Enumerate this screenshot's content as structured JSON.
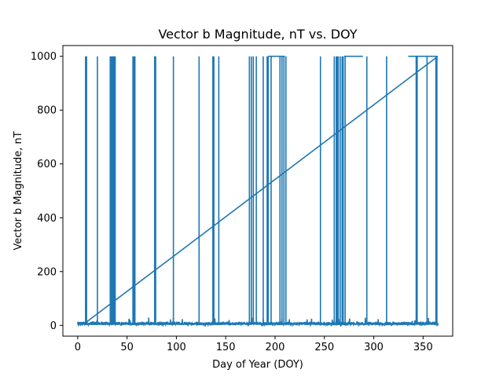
{
  "chart_data": {
    "type": "line",
    "title": "Vector b Magnitude, nT vs. DOY",
    "xlabel": "Day of Year (DOY)",
    "ylabel": "Vector b Magnitude, nT",
    "xlim": [
      -15,
      380
    ],
    "ylim": [
      -40,
      1040
    ],
    "xticks": [
      0,
      50,
      100,
      150,
      200,
      250,
      300,
      350
    ],
    "yticks": [
      0,
      200,
      400,
      600,
      800,
      1000
    ],
    "color": "#1f77b4",
    "grid": false,
    "series": [
      {
        "name": "Vector b Magnitude",
        "baseline_range": [
          2,
          30
        ],
        "spike_value": 1000,
        "spike_days": [
          8,
          9,
          20,
          33,
          34,
          35,
          36,
          37,
          38,
          56,
          57,
          58,
          78,
          79,
          97,
          123,
          137,
          138,
          143,
          174,
          176,
          178,
          181,
          188,
          192,
          193,
          196,
          205,
          207,
          209,
          211,
          246,
          260,
          262,
          263,
          264,
          266,
          268,
          269,
          271,
          293,
          313,
          343,
          344,
          354,
          363,
          364
        ],
        "plateaus": [
          [
            193,
            210
          ],
          [
            270,
            289
          ],
          [
            335,
            364
          ]
        ],
        "wrap_line": {
          "x": [
            8,
            365
          ],
          "y": [
            10,
            1000
          ]
        }
      }
    ]
  }
}
